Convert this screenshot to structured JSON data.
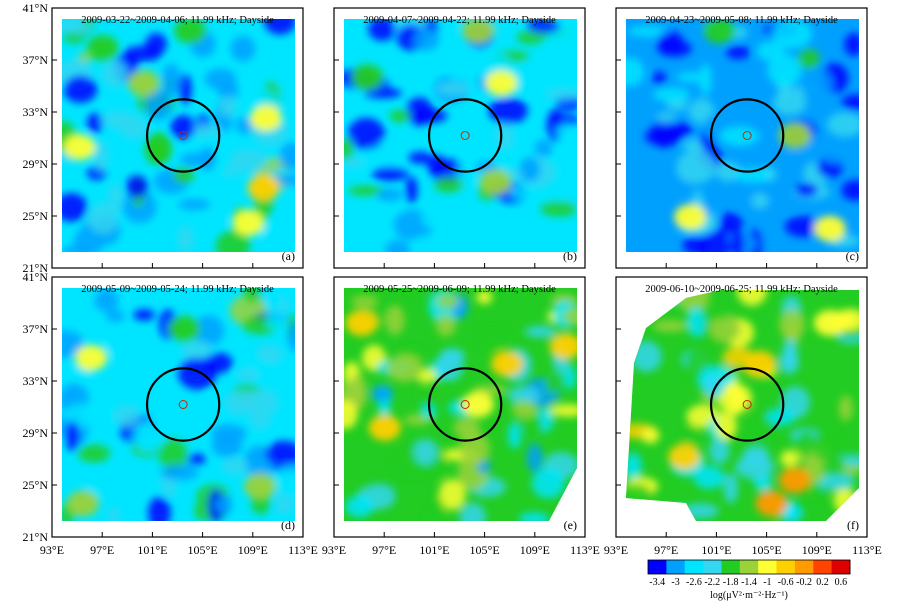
{
  "chart_data": {
    "type": "heatmap",
    "title": "ULF/VLF electric field power spectral density maps, 11.99 kHz, dayside",
    "x_axis": {
      "range": [
        93,
        113
      ],
      "ticks": [
        93,
        97,
        101,
        105,
        109,
        113
      ],
      "tick_labels": [
        "93°E",
        "97°E",
        "101°E",
        "105°E",
        "109°E",
        "113°E"
      ]
    },
    "y_axis": {
      "range": [
        21,
        41
      ],
      "ticks": [
        21,
        25,
        29,
        33,
        37,
        41
      ],
      "tick_labels": [
        "21°N",
        "25°N",
        "29°N",
        "33°N",
        "37°N",
        "41°N"
      ]
    },
    "epicenter": {
      "lon": 103.4,
      "lat": 31.0
    },
    "circle_radius_deg": 3.1,
    "colorbar": {
      "ticks": [
        -3.4,
        -3,
        -2.6,
        -2.2,
        -1.8,
        -1.4,
        -1,
        -0.6,
        -0.2,
        0.2,
        0.6
      ],
      "tick_labels": [
        "-3.4",
        "-3",
        "-2.6",
        "-2.2",
        "-1.8",
        "-1.4",
        "-1",
        "-0.6",
        "-0.2",
        "0.2",
        "0.6"
      ],
      "label": "log(μV²·m⁻²·Hz⁻¹)",
      "range": [
        -3.4,
        0.6
      ],
      "colors": [
        "#0000ff",
        "#00a0ff",
        "#00e5ff",
        "#34d6f0",
        "#22cc22",
        "#9ad23a",
        "#ffff33",
        "#ffd000",
        "#ff9a00",
        "#ff4400",
        "#dd0000"
      ]
    },
    "panels": [
      {
        "id": "a",
        "label": "(a)",
        "title": "2009-03-22~2009-04-06; 11.99 kHz; Dayside",
        "mean_level": -2.35,
        "anomalies": [
          {
            "lon": 110.5,
            "lat": 32.5,
            "value": -1.0
          },
          {
            "lon": 110.3,
            "lat": 26.5,
            "value": -0.8
          },
          {
            "lon": 109.0,
            "lat": 23.5,
            "value": -0.9
          },
          {
            "lon": 96.5,
            "lat": 38.5,
            "value": -1.6
          },
          {
            "lon": 100.0,
            "lat": 35.5,
            "value": -1.5
          },
          {
            "lon": 94.5,
            "lat": 30.0,
            "value": -1.2
          },
          {
            "lon": 104.0,
            "lat": 40.0,
            "value": -1.7
          }
        ]
      },
      {
        "id": "b",
        "label": "(b)",
        "title": "2009-04-07~2009-04-22; 11.99 kHz; Dayside",
        "mean_level": -2.6,
        "anomalies": [
          {
            "lon": 104.5,
            "lat": 40.0,
            "value": -1.4
          },
          {
            "lon": 106.5,
            "lat": 35.5,
            "value": -1.1
          },
          {
            "lon": 106.0,
            "lat": 27.0,
            "value": -1.4
          },
          {
            "lon": 95.0,
            "lat": 36.0,
            "value": -1.6
          }
        ]
      },
      {
        "id": "c",
        "label": "(c)",
        "title": "2009-04-23~2009-05-08; 11.99 kHz; Dayside",
        "mean_level": -2.8,
        "anomalies": [
          {
            "lon": 98.5,
            "lat": 24.0,
            "value": -1.2
          },
          {
            "lon": 110.5,
            "lat": 23.0,
            "value": -1.0
          },
          {
            "lon": 107.5,
            "lat": 31.0,
            "value": -1.5
          },
          {
            "lon": 101.0,
            "lat": 40.0,
            "value": -1.8
          }
        ]
      },
      {
        "id": "d",
        "label": "(d)",
        "title": "2009-05-09~2009-05-24; 11.99 kHz; Dayside",
        "mean_level": -2.45,
        "anomalies": [
          {
            "lon": 95.5,
            "lat": 35.0,
            "value": -1.1
          },
          {
            "lon": 94.8,
            "lat": 22.5,
            "value": -1.3
          },
          {
            "lon": 103.5,
            "lat": 37.5,
            "value": -1.6
          },
          {
            "lon": 110.0,
            "lat": 24.0,
            "value": -1.3
          }
        ]
      },
      {
        "id": "e",
        "label": "(e)",
        "title": "2009-05-25~2009-06-09; 11.99 kHz; Dayside",
        "mean_level": -1.9,
        "anomalies": [
          {
            "lon": 112.0,
            "lat": 36.0,
            "value": -0.5
          },
          {
            "lon": 96.5,
            "lat": 29.0,
            "value": -0.8
          },
          {
            "lon": 107.0,
            "lat": 34.5,
            "value": -0.8
          },
          {
            "lon": 104.5,
            "lat": 31.0,
            "value": -0.9
          },
          {
            "lon": 94.5,
            "lat": 38.0,
            "value": -0.7
          }
        ]
      },
      {
        "id": "f",
        "label": "(f)",
        "title": "2009-06-10~2009-06-25; 11.99 kHz; Dayside",
        "mean_level": -1.65,
        "anomalies": [
          {
            "lon": 107.5,
            "lat": 24.5,
            "value": -0.2
          },
          {
            "lon": 105.5,
            "lat": 22.5,
            "value": -0.3
          },
          {
            "lon": 104.5,
            "lat": 34.5,
            "value": -0.5
          },
          {
            "lon": 98.0,
            "lat": 26.5,
            "value": -0.8
          },
          {
            "lon": 110.5,
            "lat": 38.0,
            "value": -0.9
          }
        ]
      }
    ]
  }
}
